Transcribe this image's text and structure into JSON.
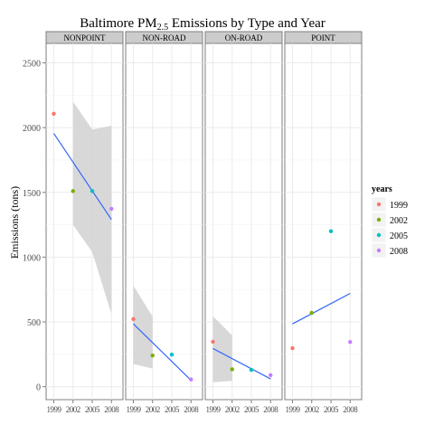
{
  "chart_data": {
    "type": "scatter",
    "title_main": "Baltimore PM",
    "title_sub": "2.5",
    "title_rest": " Emissions by Type and Year",
    "xlabel": "",
    "ylabel": "Emissions (tons)",
    "ylim": [
      -100,
      2650
    ],
    "yticks": [
      0,
      500,
      1000,
      1500,
      2000,
      2500
    ],
    "x": [
      1999,
      2002,
      2005,
      2008
    ],
    "xlim": [
      1997.8,
      2009.8
    ],
    "grid": true,
    "legend": {
      "title": "years",
      "placement": "right",
      "entries": [
        "1999",
        "2002",
        "2005",
        "2008"
      ],
      "colors": [
        "#F8766D",
        "#7CAE00",
        "#00BFC4",
        "#C77CFF"
      ]
    },
    "trend_color": "#3366FF",
    "band_color": "#d4d4d4",
    "panels": [
      {
        "name": "NONPOINT",
        "values": [
          2107,
          1510,
          1510,
          1373
        ],
        "fit": [
          1955,
          1290
        ],
        "band_upper": [
          null,
          2200,
          1985,
          2015
        ],
        "band_lower": [
          null,
          1250,
          1040,
          560
        ]
      },
      {
        "name": "NON-ROAD",
        "values": [
          522,
          241,
          248,
          56
        ],
        "fit": [
          485,
          50
        ],
        "band_upper": [
          780,
          540,
          null,
          null
        ],
        "band_lower": [
          175,
          140,
          null,
          null
        ]
      },
      {
        "name": "ON-ROAD",
        "values": [
          347,
          134,
          130,
          89
        ],
        "fit": [
          295,
          60
        ],
        "band_upper": [
          545,
          395,
          null,
          null
        ],
        "band_lower": [
          35,
          45,
          null,
          null
        ]
      },
      {
        "name": "POINT",
        "values": [
          297,
          570,
          1200,
          345
        ],
        "fit": [
          485,
          720
        ],
        "band_upper": [
          null,
          null,
          null,
          null
        ],
        "band_lower": [
          null,
          null,
          null,
          null
        ]
      }
    ]
  }
}
